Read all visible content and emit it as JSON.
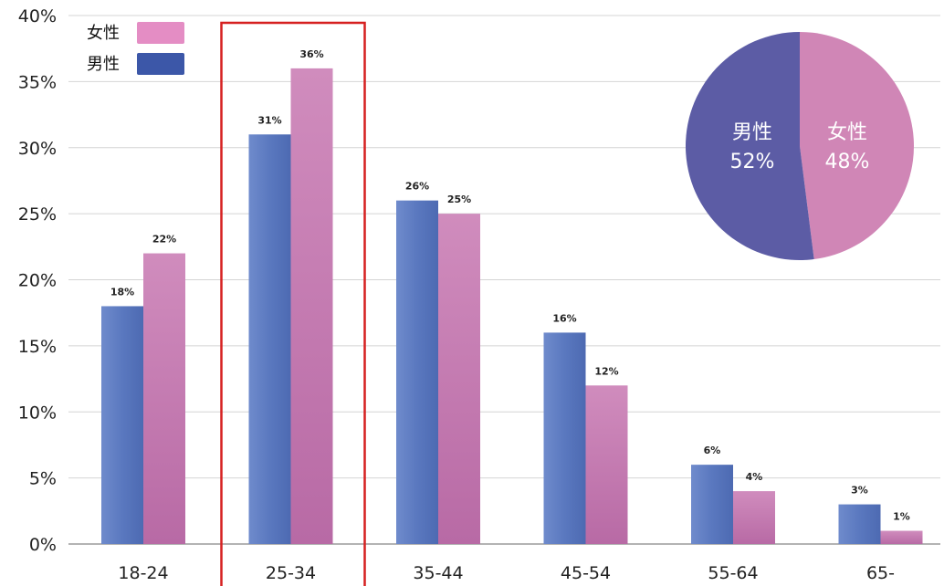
{
  "chart_data": [
    {
      "type": "bar",
      "categories": [
        "18-24",
        "25-34",
        "35-44",
        "45-54",
        "55-64",
        "65-"
      ],
      "series": [
        {
          "name": "男性",
          "values": [
            18,
            31,
            26,
            16,
            6,
            3
          ],
          "labels": [
            "18%",
            "31%",
            "26%",
            "16%",
            "6%",
            "3%"
          ],
          "color": "#5a78bf"
        },
        {
          "name": "女性",
          "values": [
            22,
            36,
            25,
            12,
            4,
            1
          ],
          "labels": [
            "22%",
            "36%",
            "25%",
            "12%",
            "4%",
            "1%"
          ],
          "color": "#c47ab0"
        }
      ],
      "yticks": [
        "0%",
        "5%",
        "10%",
        "15%",
        "20%",
        "25%",
        "30%",
        "35%",
        "40%"
      ],
      "ylim": [
        0,
        40
      ],
      "grid": true,
      "legend": "top-left",
      "legend_order": [
        "女性",
        "男性"
      ],
      "legend_colors": {
        "女性": "#e48dc4",
        "男性": "#3c57a8"
      },
      "highlight": {
        "category": "25-34",
        "color": "#d62020"
      }
    },
    {
      "type": "pie",
      "slices": [
        {
          "name": "男性",
          "value": 52,
          "label": "52%",
          "color": "#5c5ca5"
        },
        {
          "name": "女性",
          "value": 48,
          "label": "48%",
          "color": "#d086b6"
        }
      ]
    }
  ]
}
